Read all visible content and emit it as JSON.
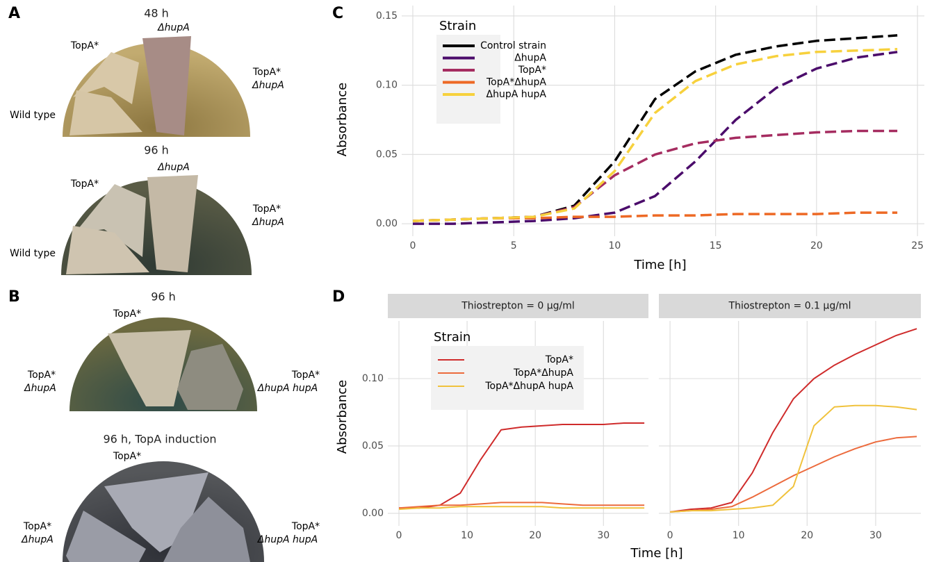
{
  "panels": [
    {
      "letter": "A",
      "plates": [
        {
          "title": "48 h",
          "labels": [
            [
              "ΔhupA"
            ],
            [
              "TopA*"
            ],
            [
              "TopA*",
              "ΔhupA"
            ],
            [
              "Wild type"
            ]
          ]
        },
        {
          "title": "96 h",
          "labels": [
            [
              "ΔhupA"
            ],
            [
              "TopA*"
            ],
            [
              "TopA*",
              "ΔhupA"
            ],
            [
              "Wild type"
            ]
          ]
        }
      ]
    },
    {
      "letter": "B",
      "plates": [
        {
          "title": "96 h",
          "labels": [
            [
              "TopA*"
            ],
            [
              "TopA*",
              "ΔhupA"
            ],
            [
              "TopA*",
              "ΔhupA hupA"
            ]
          ]
        },
        {
          "title": "96 h, TopA induction",
          "labels": [
            [
              "TopA*"
            ],
            [
              "TopA*",
              "ΔhupA"
            ],
            [
              "TopA*",
              "ΔhupA hupA"
            ]
          ]
        }
      ]
    },
    {
      "letter": "C"
    },
    {
      "letter": "D"
    }
  ],
  "chart_data": [
    {
      "type": "line",
      "line_style": "dashed",
      "show_legend": true,
      "legend_title": "Strain",
      "xlabel": "Time [h]",
      "ylabel": "Absorbance",
      "grid": true,
      "x": [
        0,
        2,
        4,
        6,
        8,
        10,
        12,
        14,
        16,
        18,
        20,
        22,
        24
      ],
      "xlim": [
        -0.55,
        25.34
      ],
      "xticks": [
        0,
        5,
        10,
        15,
        20,
        25
      ],
      "ylim": [
        -0.009,
        0.1575
      ],
      "yticks": [
        {
          "value": 0,
          "label": "0.00"
        },
        {
          "value": 0.05,
          "label": "0.05"
        },
        {
          "value": 0.1,
          "label": "0.10"
        },
        {
          "value": 0.15,
          "label": "0.15"
        }
      ],
      "series": [
        {
          "name": "Control strain",
          "color": "#000000",
          "values": [
            0.002,
            0.003,
            0.004,
            0.005,
            0.013,
            0.045,
            0.09,
            0.11,
            0.122,
            0.128,
            0.132,
            0.134,
            0.136
          ]
        },
        {
          "name": "ΔhupA",
          "color": "#4b0c6b",
          "values": [
            0,
            0,
            0.001,
            0.002,
            0.004,
            0.008,
            0.02,
            0.045,
            0.075,
            0.098,
            0.112,
            0.12,
            0.124
          ]
        },
        {
          "name": "TopA*",
          "color": "#a52c60",
          "values": [
            0.002,
            0.003,
            0.004,
            0.005,
            0.012,
            0.035,
            0.05,
            0.058,
            0.062,
            0.064,
            0.066,
            0.067,
            0.067
          ]
        },
        {
          "name": "TopA*ΔhupA",
          "color": "#ed6925",
          "values": [
            0.002,
            0.003,
            0.004,
            0.004,
            0.005,
            0.005,
            0.006,
            0.006,
            0.007,
            0.007,
            0.007,
            0.008,
            0.008
          ]
        },
        {
          "name": "ΔhupA hupA",
          "color": "#f7d13d",
          "values": [
            0.002,
            0.003,
            0.004,
            0.005,
            0.011,
            0.038,
            0.08,
            0.103,
            0.115,
            0.121,
            0.124,
            0.125,
            0.126
          ]
        }
      ]
    },
    {
      "type": "line",
      "line_style": "solid",
      "show_legend": true,
      "legend_title": "Strain",
      "title": "Thiostrepton = 0 μg/ml",
      "xlabel": "Time [h]",
      "ylabel": "Absorbance",
      "grid": true,
      "x": [
        0,
        3,
        6,
        9,
        12,
        15,
        18,
        21,
        24,
        27,
        30,
        33,
        36
      ],
      "xlim": [
        -1.63,
        36.6
      ],
      "xticks": [
        0,
        10,
        20,
        30
      ],
      "ylim": [
        -0.0093,
        0.1428
      ],
      "yticks": [
        {
          "value": 0,
          "label": "0.00"
        },
        {
          "value": 0.05,
          "label": "0.05"
        },
        {
          "value": 0.1,
          "label": "0.10"
        }
      ],
      "series": [
        {
          "name": "TopA*",
          "color": "#cf2b2b",
          "values": [
            0.004,
            0.004,
            0.006,
            0.015,
            0.04,
            0.062,
            0.064,
            0.065,
            0.066,
            0.066,
            0.066,
            0.067,
            0.067
          ]
        },
        {
          "name": "TopA*ΔhupA",
          "color": "#ec6a3c",
          "values": [
            0.004,
            0.005,
            0.006,
            0.006,
            0.007,
            0.008,
            0.008,
            0.008,
            0.007,
            0.006,
            0.006,
            0.006,
            0.006
          ]
        },
        {
          "name": "TopA*ΔhupA hupA",
          "color": "#f0c23c",
          "values": [
            0.003,
            0.004,
            0.004,
            0.005,
            0.005,
            0.005,
            0.005,
            0.005,
            0.004,
            0.004,
            0.004,
            0.004,
            0.004
          ]
        }
      ]
    },
    {
      "type": "line",
      "line_style": "solid",
      "show_legend": false,
      "title": "Thiostrepton = 0.1 μg/ml",
      "grid": true,
      "x": [
        0,
        3,
        6,
        9,
        12,
        15,
        18,
        21,
        24,
        27,
        30,
        33,
        36
      ],
      "xlim": [
        -1.63,
        36.6
      ],
      "xticks": [
        0,
        10,
        20,
        30
      ],
      "ylim": [
        -0.0093,
        0.1428
      ],
      "yticks": [
        0,
        0.05,
        0.1
      ],
      "series": [
        {
          "name": "TopA*",
          "color": "#cf2b2b",
          "values": [
            0.001,
            0.003,
            0.004,
            0.008,
            0.03,
            0.06,
            0.085,
            0.1,
            0.11,
            0.118,
            0.125,
            0.132,
            0.137
          ]
        },
        {
          "name": "TopA*ΔhupA",
          "color": "#ec6a3c",
          "values": [
            0.001,
            0.002,
            0.003,
            0.005,
            0.012,
            0.02,
            0.028,
            0.035,
            0.042,
            0.048,
            0.053,
            0.056,
            0.057
          ]
        },
        {
          "name": "TopA*ΔhupA hupA",
          "color": "#f0c23c",
          "values": [
            0.001,
            0.002,
            0.002,
            0.003,
            0.004,
            0.006,
            0.02,
            0.065,
            0.079,
            0.08,
            0.08,
            0.079,
            0.077
          ]
        }
      ]
    }
  ]
}
